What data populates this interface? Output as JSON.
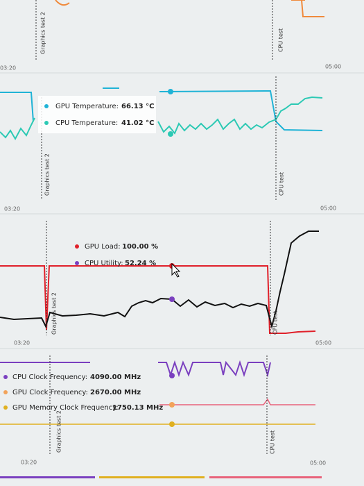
{
  "panels": [
    {
      "markers": [
        "Graphics test 2",
        "CPU test"
      ],
      "x_labels": [
        "03:20",
        "05:00"
      ]
    },
    {
      "tooltip": [
        {
          "label": "GPU Temperature:",
          "value": "66.13 °C"
        },
        {
          "label": "CPU Temperature:",
          "value": "41.02 °C"
        }
      ],
      "markers": [
        "Graphics test 2",
        "CPU test"
      ],
      "x_labels": [
        "03:20",
        "05:00"
      ]
    },
    {
      "tooltip": [
        {
          "label": "GPU Load:",
          "value": "100.00 %"
        },
        {
          "label": "CPU Utility:",
          "value": "52.24 %"
        }
      ],
      "markers": [
        "Graphics test 2",
        "CPU test"
      ],
      "x_labels": [
        "03:20",
        "05:00"
      ]
    },
    {
      "tooltip": [
        {
          "label": "CPU Clock Frequency:",
          "value": "4090.00 MHz"
        },
        {
          "label": "GPU Clock Frequency:",
          "value": "2670.00 MHz"
        },
        {
          "label": "GPU Memory Clock Frequency:",
          "value": "1750.13 MHz"
        }
      ],
      "markers": [
        "Graphics test 2",
        "CPU test"
      ],
      "x_labels": [
        "03:20",
        "05:00"
      ]
    }
  ]
}
